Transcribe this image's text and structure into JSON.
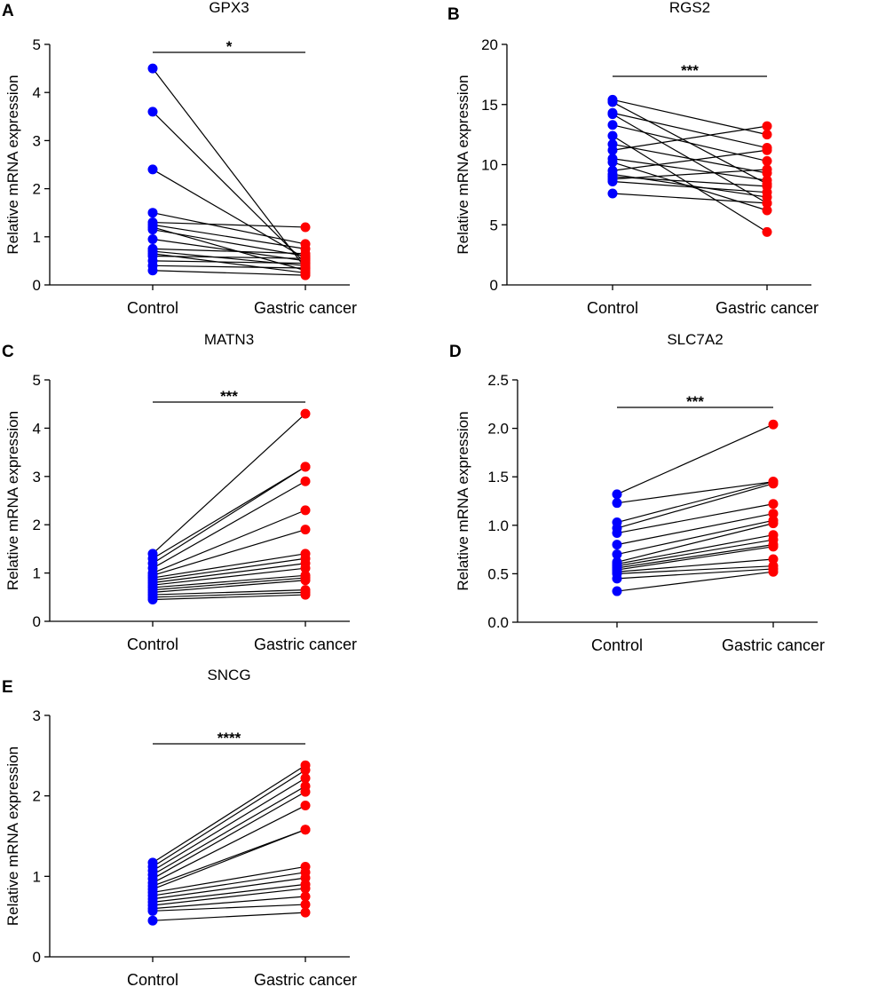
{
  "chart_data": [
    {
      "panel": "A",
      "type": "scatter",
      "title": "GPX3",
      "xlabel": "",
      "ylabel": "Relative mRNA expression",
      "categories": [
        "Control",
        "Gastric cancer"
      ],
      "ylim": [
        0,
        5
      ],
      "yticks": [
        "0",
        "1",
        "2",
        "3",
        "4",
        "5"
      ],
      "significance": "*",
      "series_colors": {
        "control": "#0000ff",
        "cancer": "#ff0000"
      },
      "pairs": [
        [
          4.5,
          0.35
        ],
        [
          3.6,
          0.45
        ],
        [
          2.4,
          0.55
        ],
        [
          1.5,
          0.85
        ],
        [
          1.3,
          1.2
        ],
        [
          1.25,
          0.75
        ],
        [
          1.2,
          0.3
        ],
        [
          1.15,
          0.6
        ],
        [
          0.95,
          0.5
        ],
        [
          0.75,
          0.65
        ],
        [
          0.7,
          0.4
        ],
        [
          0.65,
          0.25
        ],
        [
          0.6,
          0.55
        ],
        [
          0.5,
          0.45
        ],
        [
          0.4,
          0.35
        ],
        [
          0.3,
          0.2
        ]
      ]
    },
    {
      "panel": "B",
      "type": "scatter",
      "title": "RGS2",
      "xlabel": "",
      "ylabel": "Relative mRNA expression",
      "categories": [
        "Control",
        "Gastric cancer"
      ],
      "ylim": [
        0,
        20
      ],
      "yticks": [
        "0",
        "5",
        "10",
        "15",
        "20"
      ],
      "significance": "***",
      "series_colors": {
        "control": "#0000ff",
        "cancer": "#ff0000"
      },
      "pairs": [
        [
          15.4,
          12.5
        ],
        [
          15.2,
          8.4
        ],
        [
          14.3,
          11.4
        ],
        [
          14.2,
          6.8
        ],
        [
          13.3,
          10.3
        ],
        [
          12.4,
          4.4
        ],
        [
          11.7,
          9.3
        ],
        [
          11.2,
          13.2
        ],
        [
          10.5,
          8.7
        ],
        [
          10.2,
          6.2
        ],
        [
          9.5,
          11.2
        ],
        [
          9.2,
          7.3
        ],
        [
          8.8,
          9.6
        ],
        [
          8.6,
          7.7
        ],
        [
          7.6,
          6.8
        ],
        [
          9.0,
          8.2
        ]
      ]
    },
    {
      "panel": "C",
      "type": "scatter",
      "title": "MATN3",
      "xlabel": "",
      "ylabel": "Relative mRNA expression",
      "categories": [
        "Control",
        "Gastric cancer"
      ],
      "ylim": [
        0,
        5
      ],
      "yticks": [
        "0",
        "1",
        "2",
        "3",
        "4",
        "5"
      ],
      "significance": "***",
      "series_colors": {
        "control": "#0000ff",
        "cancer": "#ff0000"
      },
      "pairs": [
        [
          1.4,
          4.3
        ],
        [
          1.3,
          3.2
        ],
        [
          1.2,
          3.2
        ],
        [
          1.1,
          2.9
        ],
        [
          1.0,
          2.3
        ],
        [
          0.95,
          1.9
        ],
        [
          0.9,
          1.4
        ],
        [
          0.85,
          1.3
        ],
        [
          0.8,
          1.2
        ],
        [
          0.75,
          1.1
        ],
        [
          0.7,
          0.95
        ],
        [
          0.65,
          0.9
        ],
        [
          0.6,
          0.85
        ],
        [
          0.55,
          0.65
        ],
        [
          0.5,
          0.6
        ],
        [
          0.45,
          0.55
        ]
      ]
    },
    {
      "panel": "D",
      "type": "scatter",
      "title": "SLC7A2",
      "xlabel": "",
      "ylabel": "Relative mRNA expression",
      "categories": [
        "Control",
        "Gastric cancer"
      ],
      "ylim": [
        0,
        2.5
      ],
      "yticks": [
        "0.0",
        "0.5",
        "1.0",
        "1.5",
        "2.0",
        "2.5"
      ],
      "significance": "***",
      "series_colors": {
        "control": "#0000ff",
        "cancer": "#ff0000"
      },
      "pairs": [
        [
          1.32,
          2.04
        ],
        [
          1.23,
          1.45
        ],
        [
          1.03,
          1.45
        ],
        [
          0.97,
          1.43
        ],
        [
          0.92,
          1.22
        ],
        [
          0.8,
          1.12
        ],
        [
          0.7,
          1.05
        ],
        [
          0.62,
          1.02
        ],
        [
          0.6,
          0.9
        ],
        [
          0.58,
          0.85
        ],
        [
          0.56,
          0.8
        ],
        [
          0.54,
          0.78
        ],
        [
          0.52,
          0.65
        ],
        [
          0.5,
          0.58
        ],
        [
          0.45,
          0.55
        ],
        [
          0.32,
          0.52
        ]
      ]
    },
    {
      "panel": "E",
      "type": "scatter",
      "title": "SNCG",
      "xlabel": "",
      "ylabel": "Relative mRNA expression",
      "categories": [
        "Control",
        "Gastric cancer"
      ],
      "ylim": [
        0,
        3
      ],
      "yticks": [
        "0",
        "1",
        "2",
        "3"
      ],
      "significance": "****",
      "series_colors": {
        "control": "#0000ff",
        "cancer": "#ff0000"
      },
      "pairs": [
        [
          1.17,
          2.38
        ],
        [
          1.12,
          2.32
        ],
        [
          1.07,
          2.22
        ],
        [
          1.02,
          2.12
        ],
        [
          0.97,
          2.05
        ],
        [
          0.92,
          1.88
        ],
        [
          0.88,
          1.58
        ],
        [
          0.84,
          1.58
        ],
        [
          0.8,
          1.12
        ],
        [
          0.76,
          1.05
        ],
        [
          0.72,
          0.98
        ],
        [
          0.68,
          0.9
        ],
        [
          0.64,
          0.85
        ],
        [
          0.6,
          0.75
        ],
        [
          0.57,
          0.65
        ],
        [
          0.45,
          0.55
        ]
      ]
    }
  ]
}
